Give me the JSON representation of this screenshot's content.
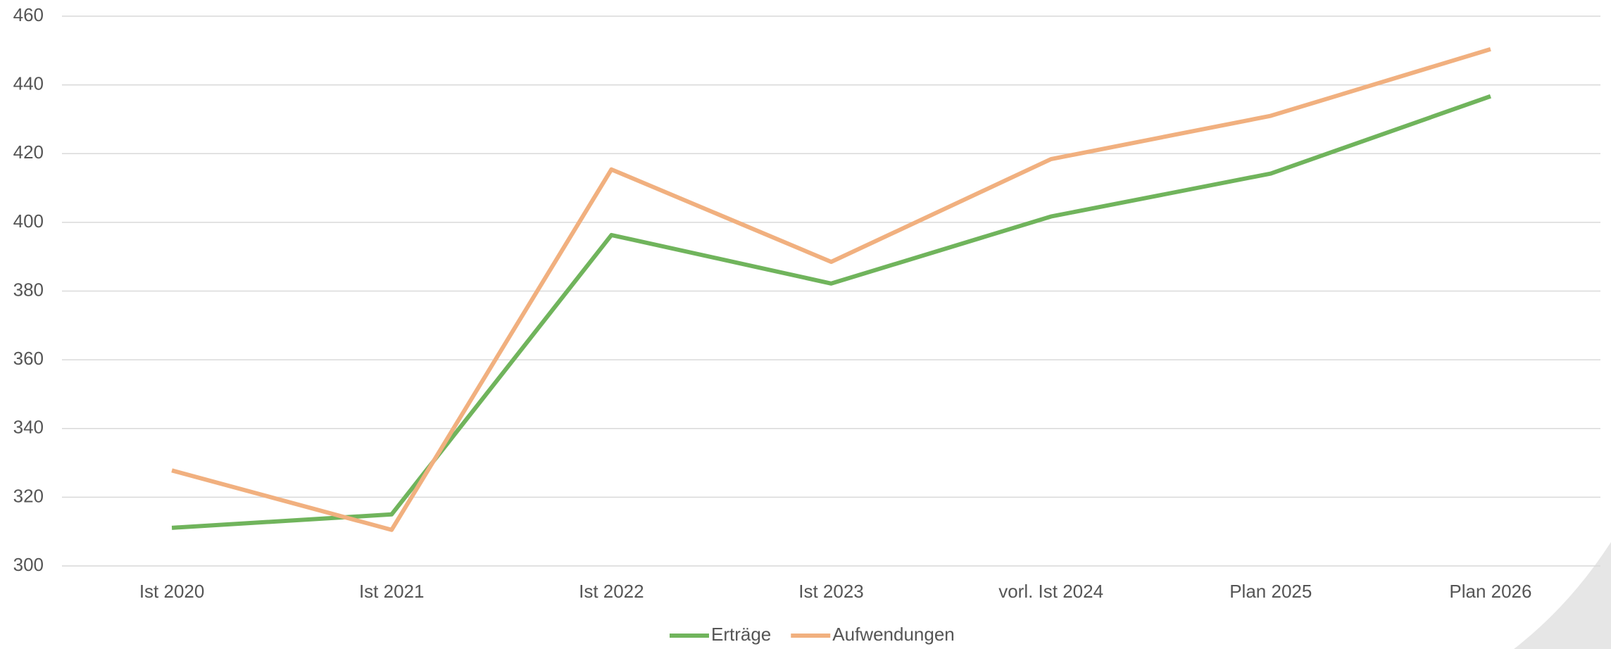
{
  "chart_data": {
    "type": "line",
    "categories": [
      "Ist 2020",
      "Ist 2021",
      "Ist 2022",
      "Ist 2023",
      "vorl. Ist 2024",
      "Plan 2025",
      "Plan 2026"
    ],
    "series": [
      {
        "name": "Erträge",
        "color": "#70b45c",
        "values": [
          311.1,
          315.0,
          396.3,
          382.2,
          401.7,
          414.2,
          436.7
        ]
      },
      {
        "name": "Aufwendungen",
        "color": "#f1b07f",
        "values": [
          327.8,
          310.5,
          415.4,
          388.5,
          418.4,
          431.0,
          450.4
        ]
      }
    ],
    "ylim": [
      300,
      460
    ],
    "yticks": [
      300,
      320,
      340,
      360,
      380,
      400,
      420,
      440,
      460
    ],
    "grid": true,
    "legend": "bottom"
  }
}
